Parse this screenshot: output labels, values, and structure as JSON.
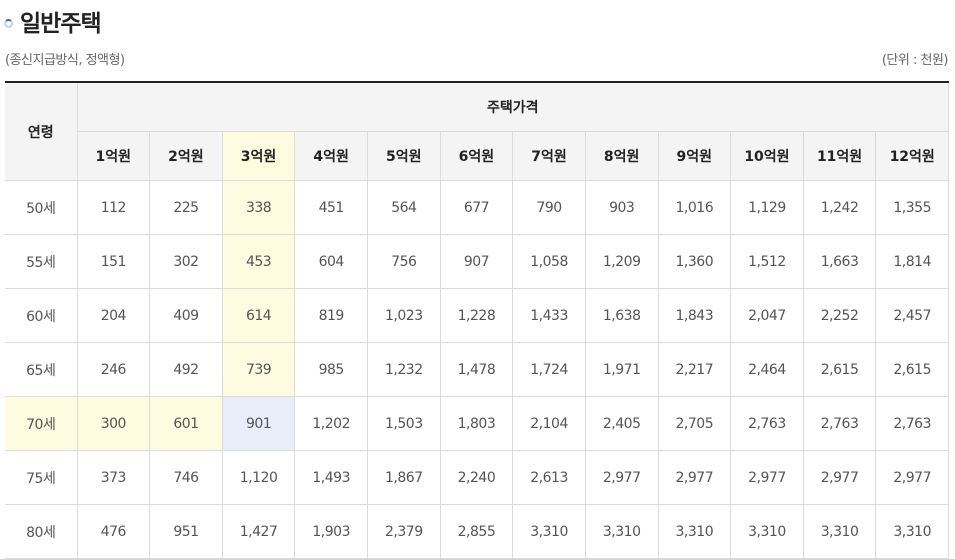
{
  "title": "일반주택",
  "subtitle": "(종신지급방식, 정액형)",
  "unit": "(단위 : 천원)",
  "colors": {
    "highlight_yellow": "#fffbe0",
    "highlight_blue": "#e7eefa"
  },
  "table": {
    "age_header": "연령",
    "price_header": "주택가격",
    "columns": [
      "1억원",
      "2억원",
      "3억원",
      "4억원",
      "5억원",
      "6억원",
      "7억원",
      "8억원",
      "9억원",
      "10억원",
      "11억원",
      "12억원"
    ],
    "rows": [
      {
        "age": "50세",
        "values": [
          "112",
          "225",
          "338",
          "451",
          "564",
          "677",
          "790",
          "903",
          "1,016",
          "1,129",
          "1,242",
          "1,355"
        ]
      },
      {
        "age": "55세",
        "values": [
          "151",
          "302",
          "453",
          "604",
          "756",
          "907",
          "1,058",
          "1,209",
          "1,360",
          "1,512",
          "1,663",
          "1,814"
        ]
      },
      {
        "age": "60세",
        "values": [
          "204",
          "409",
          "614",
          "819",
          "1,023",
          "1,228",
          "1,433",
          "1,638",
          "1,843",
          "2,047",
          "2,252",
          "2,457"
        ]
      },
      {
        "age": "65세",
        "values": [
          "246",
          "492",
          "739",
          "985",
          "1,232",
          "1,478",
          "1,724",
          "1,971",
          "2,217",
          "2,464",
          "2,615",
          "2,615"
        ]
      },
      {
        "age": "70세",
        "values": [
          "300",
          "601",
          "901",
          "1,202",
          "1,503",
          "1,803",
          "2,104",
          "2,405",
          "2,705",
          "2,763",
          "2,763",
          "2,763"
        ]
      },
      {
        "age": "75세",
        "values": [
          "373",
          "746",
          "1,120",
          "1,493",
          "1,867",
          "2,240",
          "2,613",
          "2,977",
          "2,977",
          "2,977",
          "2,977",
          "2,977"
        ]
      },
      {
        "age": "80세",
        "values": [
          "476",
          "951",
          "1,427",
          "1,903",
          "2,379",
          "2,855",
          "3,310",
          "3,310",
          "3,310",
          "3,310",
          "3,310",
          "3,310"
        ]
      }
    ]
  }
}
